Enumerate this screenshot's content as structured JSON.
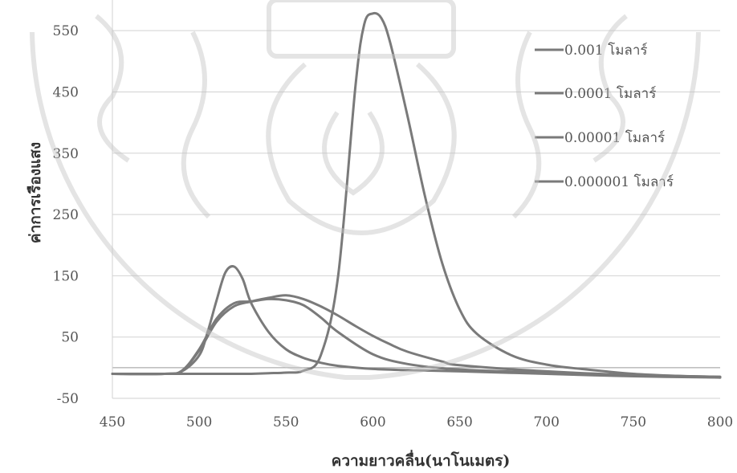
{
  "chart_data": {
    "type": "line",
    "title": "",
    "xlabel": "ความยาวคลื่น(นาโนเมตร)",
    "ylabel": "ค่าการเรืองแสง",
    "xlim": [
      450,
      800
    ],
    "ylim": [
      -50,
      600
    ],
    "xticks": [
      450,
      500,
      550,
      600,
      650,
      700,
      750,
      800
    ],
    "yticks": [
      -50,
      50,
      150,
      250,
      350,
      450,
      550
    ],
    "grid": "horizontal",
    "legend_position": "right",
    "series": [
      {
        "name": "0.001 โมลาร์",
        "color": "#7a7a7a",
        "x": [
          450,
          480,
          490,
          500,
          510,
          520,
          530,
          540,
          550,
          560,
          570,
          580,
          590,
          595,
          600,
          605,
          610,
          620,
          630,
          640,
          650,
          660,
          680,
          700,
          720,
          750,
          780,
          800
        ],
        "y": [
          -10,
          -10,
          -10,
          -10,
          -10,
          -10,
          -10,
          -9,
          -8,
          -5,
          20,
          150,
          460,
          560,
          578,
          570,
          530,
          410,
          280,
          170,
          95,
          55,
          20,
          5,
          -2,
          -10,
          -14,
          -16
        ]
      },
      {
        "name": "0.0001 โมลาร์",
        "color": "#7a7a7a",
        "x": [
          450,
          480,
          490,
          500,
          505,
          510,
          515,
          520,
          525,
          530,
          540,
          550,
          560,
          570,
          580,
          600,
          620,
          650,
          700,
          750,
          800
        ],
        "y": [
          -10,
          -10,
          -6,
          20,
          60,
          110,
          155,
          165,
          145,
          105,
          58,
          30,
          16,
          8,
          3,
          -2,
          -4,
          -6,
          -10,
          -14,
          -16
        ]
      },
      {
        "name": "0.00001 โมลาร์",
        "color": "#7a7a7a",
        "x": [
          450,
          480,
          490,
          500,
          510,
          520,
          530,
          540,
          550,
          560,
          570,
          580,
          600,
          620,
          650,
          700,
          750,
          800
        ],
        "y": [
          -10,
          -10,
          -5,
          30,
          80,
          105,
          108,
          112,
          110,
          102,
          82,
          58,
          22,
          6,
          -3,
          -8,
          -12,
          -15
        ]
      },
      {
        "name": "0.000001 โมลาร์",
        "color": "#7a7a7a",
        "x": [
          450,
          480,
          490,
          500,
          510,
          520,
          530,
          540,
          550,
          560,
          570,
          580,
          590,
          600,
          610,
          620,
          640,
          650,
          700,
          750,
          800
        ],
        "y": [
          -10,
          -10,
          -5,
          28,
          75,
          100,
          108,
          114,
          118,
          112,
          100,
          85,
          68,
          52,
          38,
          26,
          10,
          4,
          -6,
          -12,
          -15
        ]
      }
    ]
  }
}
